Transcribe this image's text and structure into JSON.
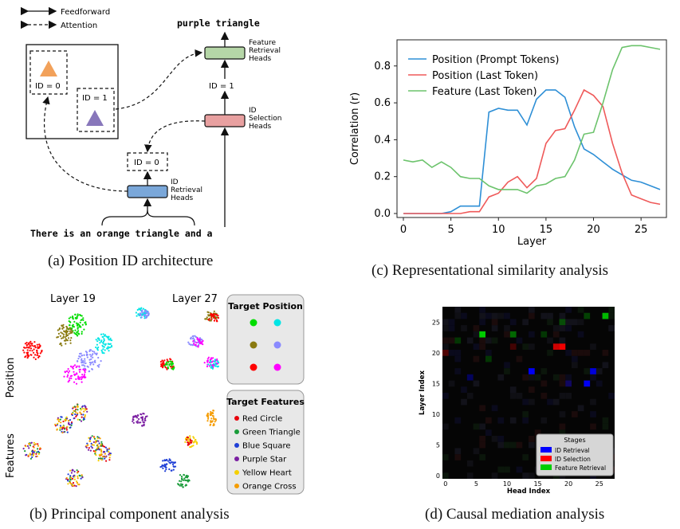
{
  "panel_a": {
    "legend": {
      "feedforward": "Feedforward",
      "attention": "Attention"
    },
    "output_text": "purple triangle",
    "input_text": "There is an orange triangle and a",
    "id_box_1": "ID = 0",
    "id_box_2": "ID = 1",
    "id_dashed_mid": "ID = 0",
    "id_label_top": "ID = 1",
    "heads": {
      "feature_retrieval": [
        "Feature",
        "Retrieval",
        "Heads"
      ],
      "id_selection": [
        "ID",
        "Selection",
        "Heads"
      ],
      "id_retrieval": [
        "ID",
        "Retrieval",
        "Heads"
      ]
    },
    "colors": {
      "orange_triangle": "#f2a15a",
      "purple_triangle": "#8877bb",
      "feature_box": "#b5d6a7",
      "selection_box": "#e8a0a0",
      "retrieval_box": "#7aa7d9"
    },
    "caption": "(a) Position ID architecture"
  },
  "panel_b": {
    "col_labels": [
      "Layer 19",
      "Layer 27"
    ],
    "row_labels": [
      "Position",
      "Features"
    ],
    "legend_position_title": "Target Position",
    "legend_position_colors": [
      "#00dd00",
      "#00e5e5",
      "#8a7a10",
      "#8a8aff",
      "#ff0000",
      "#ff00ff"
    ],
    "legend_features_title": "Target Features",
    "legend_features": [
      {
        "label": "Red Circle",
        "color": "#e8000b"
      },
      {
        "label": "Green Triangle",
        "color": "#1a9c3a"
      },
      {
        "label": "Blue Square",
        "color": "#1f3fd6"
      },
      {
        "label": "Purple Star",
        "color": "#7b1fa2"
      },
      {
        "label": "Yellow Heart",
        "color": "#f5d000"
      },
      {
        "label": "Orange Cross",
        "color": "#f59c00"
      }
    ],
    "caption": "(b) Principal component analysis"
  },
  "chart_data": [
    {
      "type": "line",
      "xlabel": "Layer",
      "ylabel": "Correlation (r)",
      "xlim": [
        0,
        27
      ],
      "ylim": [
        0,
        0.92
      ],
      "xticks": [
        0,
        5,
        10,
        15,
        20,
        25
      ],
      "yticks": [
        0.0,
        0.2,
        0.4,
        0.6,
        0.8
      ],
      "legend_position": "top-left",
      "x": [
        0,
        1,
        2,
        3,
        4,
        5,
        6,
        7,
        8,
        9,
        10,
        11,
        12,
        13,
        14,
        15,
        16,
        17,
        18,
        19,
        20,
        21,
        22,
        23,
        24,
        25,
        26,
        27
      ],
      "series": [
        {
          "name": "Position (Prompt Tokens)",
          "color": "#2e8fd6",
          "values": [
            0.0,
            0.0,
            0.0,
            0.0,
            0.0,
            0.01,
            0.04,
            0.04,
            0.04,
            0.55,
            0.57,
            0.56,
            0.56,
            0.48,
            0.62,
            0.67,
            0.67,
            0.63,
            0.47,
            0.35,
            0.32,
            0.28,
            0.24,
            0.21,
            0.18,
            0.17,
            0.15,
            0.13
          ]
        },
        {
          "name": "Position (Last Token)",
          "color": "#ef5a5a",
          "values": [
            0.0,
            0.0,
            0.0,
            0.0,
            0.0,
            0.0,
            0.0,
            0.01,
            0.01,
            0.09,
            0.11,
            0.17,
            0.2,
            0.14,
            0.19,
            0.38,
            0.45,
            0.46,
            0.56,
            0.67,
            0.64,
            0.58,
            0.38,
            0.22,
            0.1,
            0.08,
            0.06,
            0.05
          ]
        },
        {
          "name": "Feature (Last Token)",
          "color": "#6cc36c",
          "values": [
            0.29,
            0.28,
            0.29,
            0.25,
            0.28,
            0.25,
            0.2,
            0.19,
            0.19,
            0.15,
            0.13,
            0.13,
            0.13,
            0.11,
            0.15,
            0.16,
            0.19,
            0.2,
            0.29,
            0.43,
            0.44,
            0.6,
            0.78,
            0.9,
            0.91,
            0.91,
            0.9,
            0.89
          ]
        }
      ],
      "caption": "(c) Representational similarity analysis"
    },
    {
      "type": "heatmap",
      "xlabel": "Head Index",
      "ylabel": "Layer Index",
      "xlim": [
        0,
        27
      ],
      "ylim": [
        0,
        27
      ],
      "xticks": [
        0,
        5,
        10,
        15,
        20,
        25
      ],
      "yticks": [
        0,
        5,
        10,
        15,
        20,
        25
      ],
      "legend_title": "Stages",
      "legend": [
        {
          "label": "ID Retrieval",
          "color": "#0000ff"
        },
        {
          "label": "ID Selection",
          "color": "#ff0000"
        },
        {
          "label": "Feature Retrieval",
          "color": "#00cc00"
        }
      ],
      "highlighted_cells": [
        {
          "head": 14,
          "layer": 17,
          "stage": "ID Retrieval",
          "intensity": 0.95
        },
        {
          "head": 23,
          "layer": 15,
          "stage": "ID Retrieval",
          "intensity": 0.95
        },
        {
          "head": 24,
          "layer": 17,
          "stage": "ID Retrieval",
          "intensity": 0.85
        },
        {
          "head": 20,
          "layer": 15,
          "stage": "ID Retrieval",
          "intensity": 0.35
        },
        {
          "head": 4,
          "layer": 16,
          "stage": "ID Retrieval",
          "intensity": 0.35
        },
        {
          "head": 19,
          "layer": 21,
          "stage": "ID Selection",
          "intensity": 0.95
        },
        {
          "head": 18,
          "layer": 21,
          "stage": "ID Selection",
          "intensity": 0.8
        },
        {
          "head": 0,
          "layer": 20,
          "stage": "ID Selection",
          "intensity": 0.3
        },
        {
          "head": 11,
          "layer": 21,
          "stage": "ID Selection",
          "intensity": 0.25
        },
        {
          "head": 6,
          "layer": 23,
          "stage": "Feature Retrieval",
          "intensity": 1.0
        },
        {
          "head": 26,
          "layer": 26,
          "stage": "Feature Retrieval",
          "intensity": 0.9
        },
        {
          "head": 11,
          "layer": 23,
          "stage": "Feature Retrieval",
          "intensity": 0.5
        },
        {
          "head": 19,
          "layer": 25,
          "stage": "Feature Retrieval",
          "intensity": 0.3
        },
        {
          "head": 23,
          "layer": 26,
          "stage": "Feature Retrieval",
          "intensity": 0.3
        },
        {
          "head": 16,
          "layer": 23,
          "stage": "Feature Retrieval",
          "intensity": 0.25
        },
        {
          "head": 2,
          "layer": 22,
          "stage": "Feature Retrieval",
          "intensity": 0.25
        },
        {
          "head": 7,
          "layer": 19,
          "stage": "Feature Retrieval",
          "intensity": 0.25
        }
      ],
      "caption": "(d) Causal mediation analysis"
    }
  ]
}
